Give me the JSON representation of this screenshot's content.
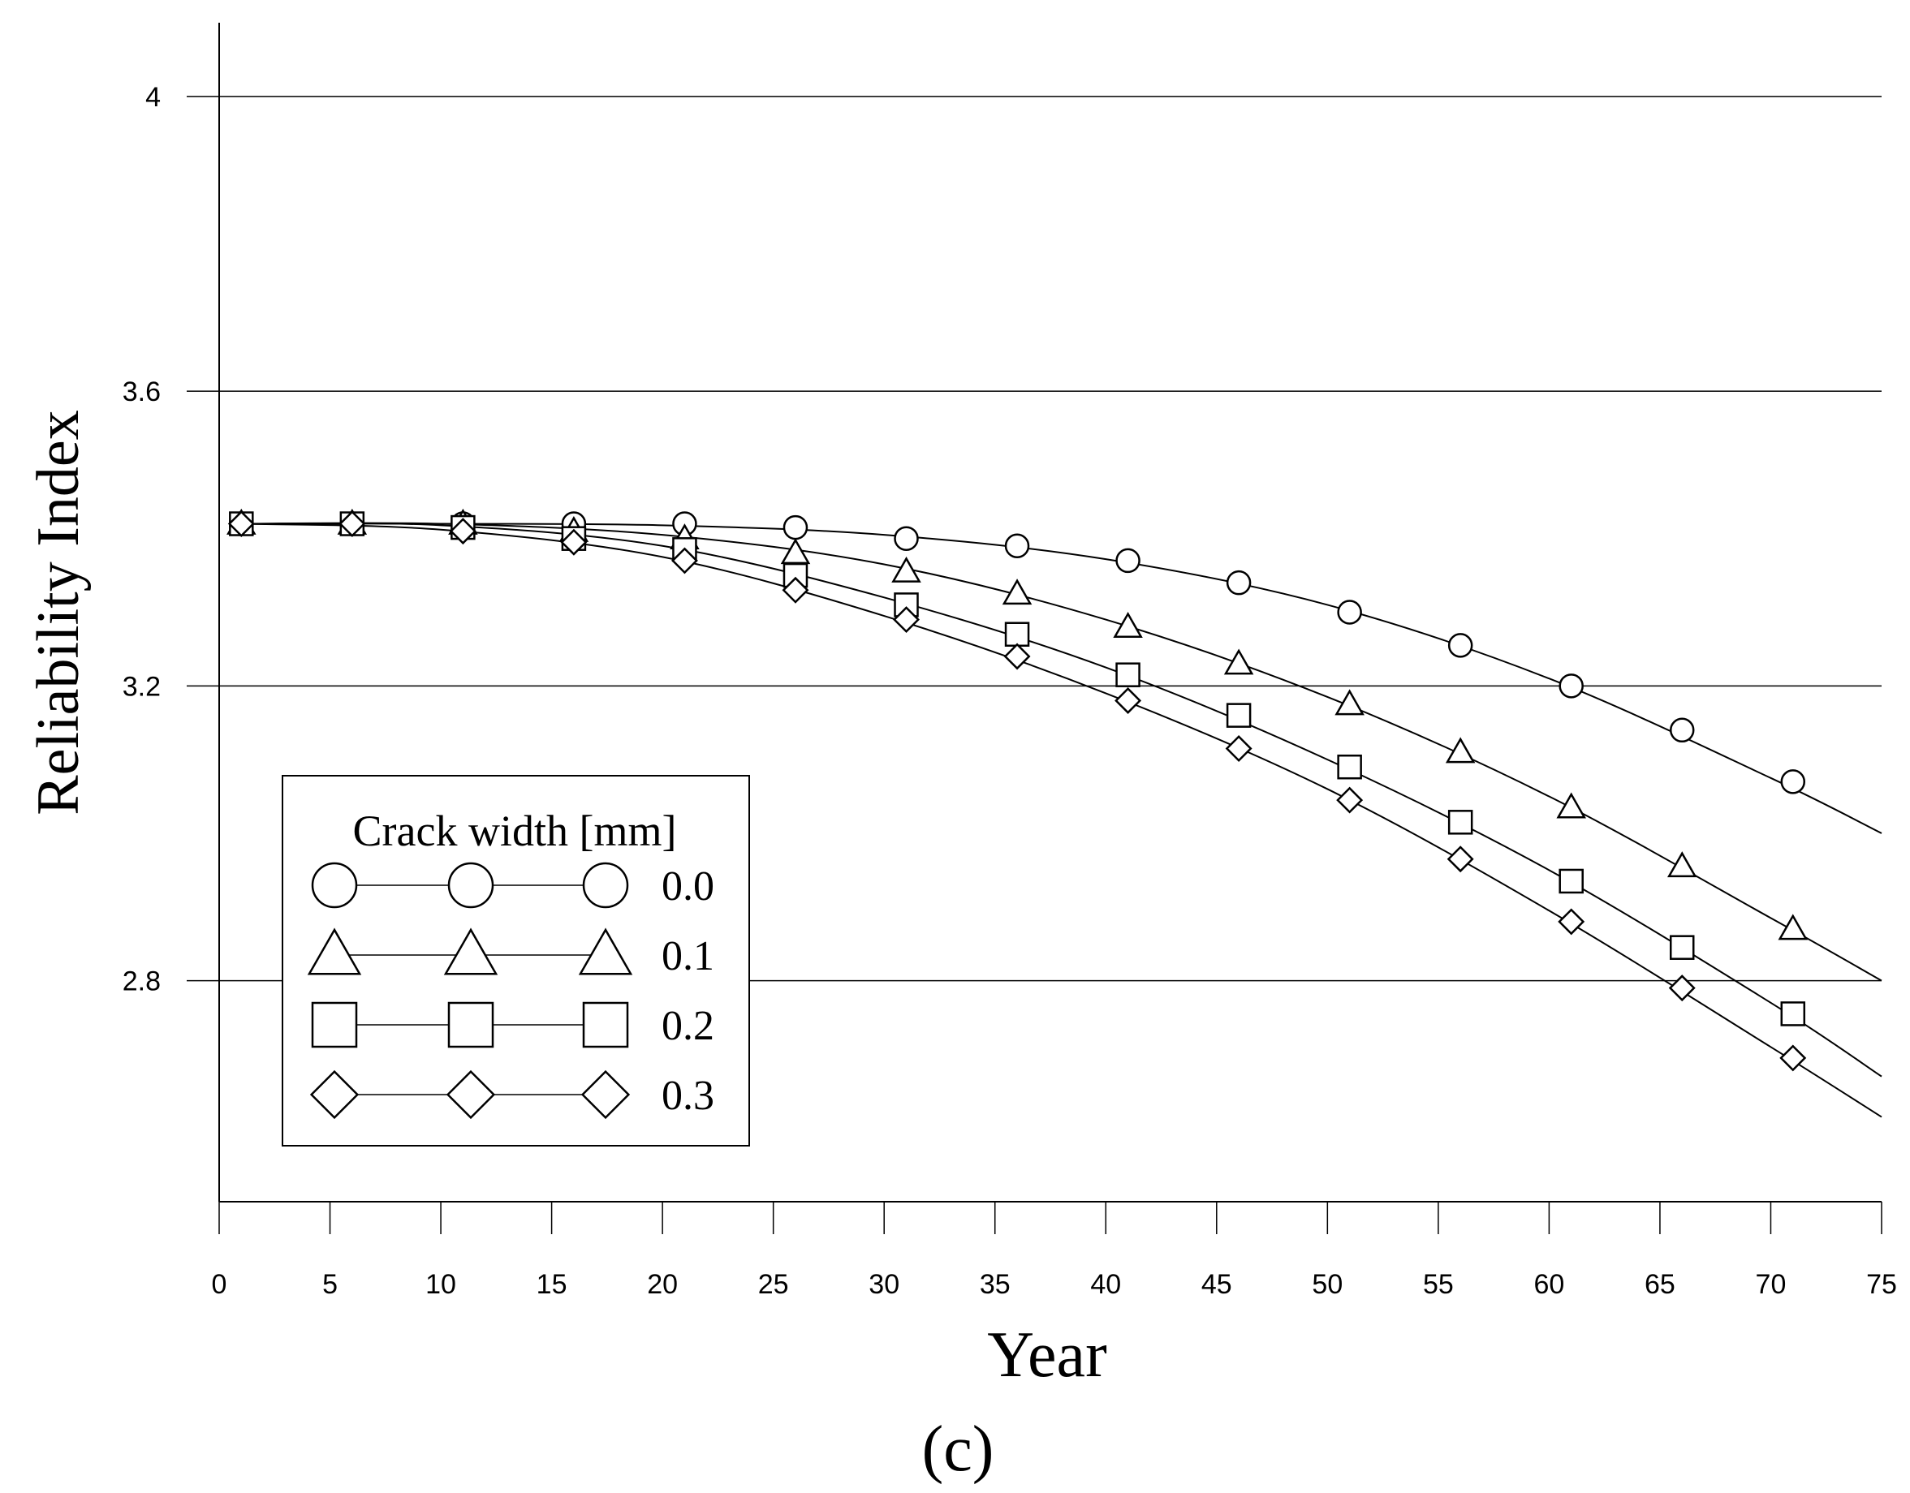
{
  "chart_data": {
    "type": "line",
    "title": "",
    "xlabel": "Year",
    "ylabel": "Reliability Index",
    "panel_label": "(c)",
    "xlim": [
      0,
      75
    ],
    "ylim": [
      2.5,
      4.1
    ],
    "x_ticks": [
      0,
      5,
      10,
      15,
      20,
      25,
      30,
      35,
      40,
      45,
      50,
      55,
      60,
      65,
      70,
      75
    ],
    "x_tick_labels": [
      "0",
      "5",
      "10",
      "15",
      "20",
      "25",
      "30",
      "35",
      "40",
      "45",
      "50",
      "55",
      "60",
      "65",
      "70",
      "75"
    ],
    "y_ticks": [
      2.8,
      3.2,
      3.6,
      4.0
    ],
    "y_tick_labels": [
      "2.8",
      "3.2",
      "3.6",
      "4"
    ],
    "grid": "horizontal",
    "legend": {
      "title": "Crack width [mm]",
      "placement": "bottom-left"
    },
    "x": [
      1,
      6,
      11,
      16,
      21,
      26,
      31,
      36,
      41,
      46,
      51,
      56,
      61,
      66,
      71
    ],
    "series": [
      {
        "name": "0.0",
        "marker": "circle",
        "values": [
          3.42,
          3.42,
          3.42,
          3.42,
          3.42,
          3.415,
          3.4,
          3.39,
          3.37,
          3.34,
          3.3,
          3.255,
          3.2,
          3.14,
          3.07
        ],
        "curve": {
          "x": [
            1,
            10,
            20,
            30,
            40,
            50,
            60,
            70,
            75
          ],
          "y": [
            3.42,
            3.42,
            3.418,
            3.405,
            3.372,
            3.31,
            3.21,
            3.075,
            3.0
          ]
        }
      },
      {
        "name": "0.1",
        "marker": "triangle",
        "values": [
          3.42,
          3.42,
          3.42,
          3.41,
          3.4,
          3.38,
          3.355,
          3.325,
          3.28,
          3.23,
          3.175,
          3.11,
          3.035,
          2.955,
          2.87
        ],
        "curve": {
          "x": [
            1,
            10,
            20,
            30,
            40,
            50,
            60,
            70,
            75
          ],
          "y": [
            3.42,
            3.42,
            3.405,
            3.365,
            3.29,
            3.185,
            3.05,
            2.885,
            2.8
          ]
        }
      },
      {
        "name": "0.2",
        "marker": "square",
        "values": [
          3.42,
          3.42,
          3.415,
          3.4,
          3.385,
          3.35,
          3.31,
          3.27,
          3.215,
          3.16,
          3.09,
          3.015,
          2.935,
          2.845,
          2.755
        ],
        "curve": {
          "x": [
            1,
            10,
            20,
            30,
            40,
            50,
            60,
            70,
            75
          ],
          "y": [
            3.42,
            3.418,
            3.39,
            3.32,
            3.225,
            3.1,
            2.95,
            2.77,
            2.67
          ]
        }
      },
      {
        "name": "0.3",
        "marker": "diamond",
        "values": [
          3.42,
          3.42,
          3.41,
          3.395,
          3.37,
          3.33,
          3.29,
          3.24,
          3.18,
          3.115,
          3.045,
          2.965,
          2.88,
          2.79,
          2.695
        ],
        "curve": {
          "x": [
            1,
            10,
            20,
            30,
            40,
            50,
            60,
            70,
            75
          ],
          "y": [
            3.42,
            3.412,
            3.375,
            3.295,
            3.19,
            3.06,
            2.895,
            2.71,
            2.615
          ]
        }
      }
    ]
  }
}
